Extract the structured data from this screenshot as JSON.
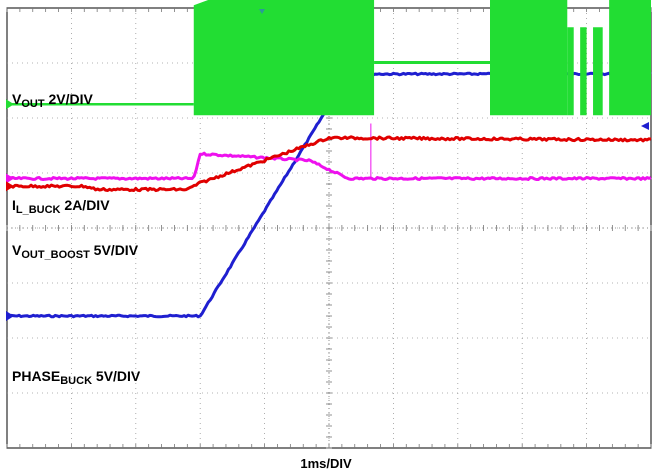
{
  "chart_data": {
    "type": "line",
    "title": "",
    "xlabel": "1ms/DIV",
    "ylabel": "",
    "grid": true,
    "x_divisions": 10,
    "y_divisions": 8,
    "xlim_ms": [
      0,
      10
    ],
    "time_per_div_ms": 1,
    "series": [
      {
        "key": "vout",
        "color": "#1f1fd0",
        "label_main": "V",
        "label_sub": "OUT",
        "label_scale": " 2V/DIV",
        "units_per_div": 2,
        "offset_div": -1.6,
        "x_ms": [
          0,
          3.0,
          5.3,
          10
        ],
        "values": [
          0,
          0,
          8.8,
          8.8
        ],
        "noise": 0.8
      },
      {
        "key": "il_buck",
        "color": "#ee11ee",
        "label_main": "I",
        "label_sub": "L_BUCK",
        "label_scale": " 2A/DIV",
        "units_per_div": 2,
        "offset_div": 0.9,
        "x_ms": [
          0,
          2.9,
          3.0,
          4.7,
          5.3,
          10
        ],
        "values": [
          0,
          0,
          0.9,
          0.65,
          0,
          0
        ],
        "noise": 1.0,
        "spike": {
          "x_ms": 5.65,
          "value": 2.0
        }
      },
      {
        "key": "vout_boost",
        "color": "#e00000",
        "label_main": "V",
        "label_sub": "OUT_BOOST",
        "label_scale": " 5V/DIV",
        "units_per_div": 5,
        "offset_div": -0.3,
        "x_ms": [
          0,
          1.2,
          1.4,
          2.8,
          3.0,
          5.0,
          10
        ],
        "values": [
          5.3,
          5.3,
          5.0,
          5.0,
          5.6,
          9.7,
          9.5
        ],
        "noise": 1.2
      },
      {
        "key": "phase_buck",
        "color": "#22dd33",
        "label_main": "PHASE",
        "label_sub": "BUCK",
        "label_scale": " 5V/DIV",
        "units_per_div": 5,
        "offset_div": 2.25,
        "baseline": 0,
        "bursts": [
          {
            "x_ms": [
              2.9,
              5.7
            ],
            "hi_start": 9.0,
            "hi_end": 15.0,
            "lo": -1.0
          },
          {
            "x_ms": [
              7.5,
              8.7
            ],
            "hi_start": 14.5,
            "hi_end": 14.5,
            "lo": -1.0
          },
          {
            "x_ms": [
              8.7,
              8.8
            ],
            "hi_start": 7.0,
            "hi_end": 7.0,
            "lo": -1.0
          },
          {
            "x_ms": [
              8.9,
              9.0
            ],
            "hi_start": 7.0,
            "hi_end": 7.0,
            "lo": -1.0
          },
          {
            "x_ms": [
              9.1,
              9.25
            ],
            "hi_start": 7.0,
            "hi_end": 7.0,
            "lo": -1.0
          },
          {
            "x_ms": [
              9.35,
              10
            ],
            "hi_start": 14.5,
            "hi_end": 14.5,
            "lo": -1.0
          }
        ],
        "plateau": {
          "x_ms": [
            5.75,
            7.5
          ],
          "value": 3.8
        }
      }
    ]
  }
}
